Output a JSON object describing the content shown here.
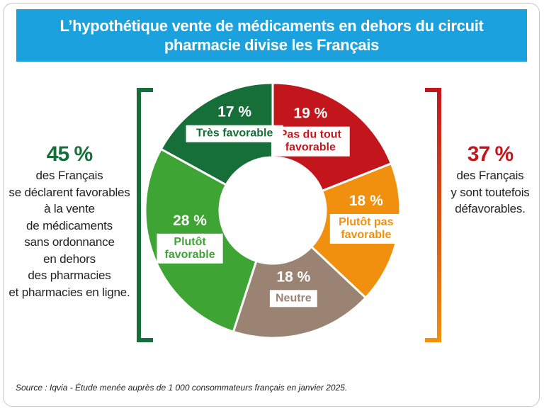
{
  "title": "L’hypothétique vente de médicaments en dehors du circuit pharmacie divise les Français",
  "colors": {
    "title_bg": "#1ba1de",
    "tres_favorable": "#166e38",
    "plutot_favorable": "#3ea535",
    "neutre": "#9a8372",
    "plutot_pas_favorable": "#f0900e",
    "pas_du_tout_favorable": "#c3161c"
  },
  "left_summary": {
    "percent": "45 %",
    "text": [
      "des Français",
      "se déclarent favorables",
      "à la vente",
      "de médicaments",
      "sans ordonnance",
      "en dehors",
      "des pharmacies",
      "et pharmacies en ligne."
    ]
  },
  "right_summary": {
    "percent": "37 %",
    "text": [
      "des Français",
      "y sont toutefois",
      "défavorables."
    ]
  },
  "source": "Source : Iqvia - Étude menée auprès de 1 000 consommateurs français en janvier 2025.",
  "chart_data": {
    "type": "pie",
    "categories": [
      "Pas du tout favorable",
      "Plutôt pas favorable",
      "Neutre",
      "Plutôt favorable",
      "Très favorable"
    ],
    "values": [
      19,
      18,
      18,
      28,
      17
    ],
    "value_labels": [
      "19 %",
      "18 %",
      "18 %",
      "28 %",
      "17 %"
    ],
    "category_labels": [
      [
        "Pas du tout",
        "favorable"
      ],
      [
        "Plutôt pas",
        "favorable"
      ],
      [
        "Neutre"
      ],
      [
        "Plutôt",
        "favorable"
      ],
      [
        "Très favorable"
      ]
    ],
    "colors": [
      "#c3161c",
      "#f0900e",
      "#9a8372",
      "#3ea535",
      "#166e38"
    ],
    "donut": true
  }
}
